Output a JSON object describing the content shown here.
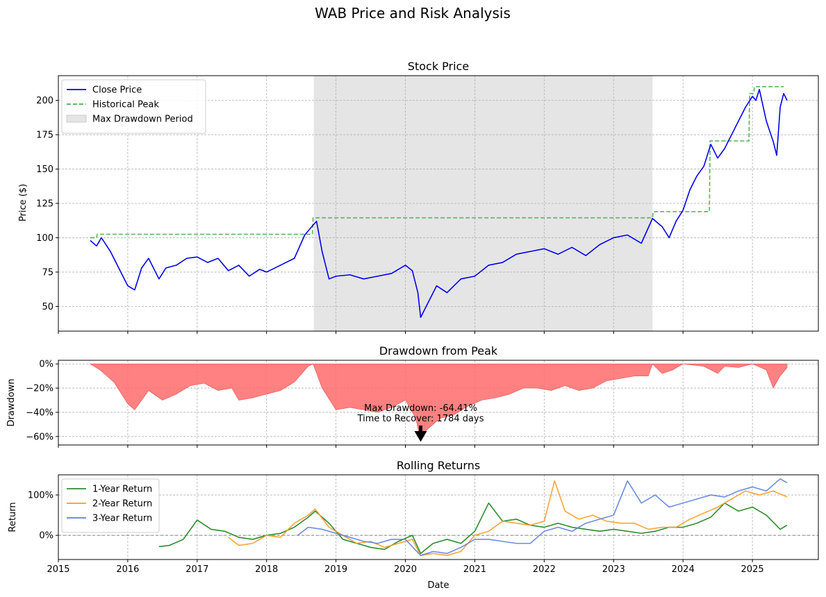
{
  "figure": {
    "title": "WAB Price and Risk Analysis"
  },
  "panels": {
    "price": {
      "title": "Stock Price",
      "ylabel": "Price ($)"
    },
    "drawdown": {
      "title": "Drawdown from Peak",
      "ylabel": "Drawdown"
    },
    "returns": {
      "title": "Rolling Returns",
      "ylabel": "Return",
      "xlabel": "Date"
    }
  },
  "colors": {
    "close": "#0000ee",
    "peak": "#4caf50",
    "shade": "#bdbdbd",
    "drawdown": "#ff6b6b",
    "r1": "#2e8b2e",
    "r2": "#ff9a1f",
    "r3": "#5b7fe0"
  },
  "chart_data": [
    {
      "type": "line",
      "title": "Stock Price",
      "xlabel": "",
      "ylabel": "Price ($)",
      "xlim": [
        2015.0,
        2025.95
      ],
      "ylim": [
        32,
        218
      ],
      "yticks": [
        50,
        75,
        100,
        125,
        150,
        175,
        200
      ],
      "grid": true,
      "legend_position": "top-left",
      "legend": [
        "Close Price",
        "Historical Peak",
        "Max Drawdown Period"
      ],
      "max_drawdown_period": [
        2018.68,
        2023.56
      ],
      "series": [
        {
          "name": "Close Price",
          "x": [
            2015.46,
            2015.55,
            2015.62,
            2015.75,
            2015.87,
            2016.0,
            2016.1,
            2016.2,
            2016.3,
            2016.45,
            2016.55,
            2016.7,
            2016.85,
            2017.0,
            2017.15,
            2017.3,
            2017.45,
            2017.6,
            2017.75,
            2017.9,
            2018.0,
            2018.2,
            2018.4,
            2018.55,
            2018.65,
            2018.72,
            2018.8,
            2018.9,
            2019.0,
            2019.2,
            2019.4,
            2019.6,
            2019.8,
            2020.0,
            2020.1,
            2020.18,
            2020.22,
            2020.3,
            2020.45,
            2020.6,
            2020.8,
            2021.0,
            2021.2,
            2021.4,
            2021.6,
            2021.8,
            2022.0,
            2022.2,
            2022.4,
            2022.6,
            2022.8,
            2023.0,
            2023.2,
            2023.4,
            2023.56,
            2023.7,
            2023.8,
            2023.9,
            2024.0,
            2024.1,
            2024.2,
            2024.3,
            2024.4,
            2024.5,
            2024.6,
            2024.7,
            2024.8,
            2024.9,
            2025.0,
            2025.05,
            2025.1,
            2025.2,
            2025.3,
            2025.35,
            2025.4,
            2025.45,
            2025.5
          ],
          "y": [
            98,
            94,
            100,
            90,
            78,
            65,
            62,
            78,
            85,
            70,
            78,
            80,
            85,
            86,
            82,
            85,
            76,
            80,
            72,
            77,
            75,
            80,
            85,
            102,
            108,
            112,
            90,
            70,
            72,
            73,
            70,
            72,
            74,
            80,
            76,
            60,
            42,
            50,
            65,
            60,
            70,
            72,
            80,
            82,
            88,
            90,
            92,
            88,
            93,
            87,
            95,
            100,
            102,
            96,
            114,
            108,
            100,
            112,
            120,
            135,
            145,
            152,
            168,
            158,
            165,
            175,
            185,
            195,
            203,
            200,
            208,
            185,
            170,
            160,
            195,
            205,
            200
          ]
        },
        {
          "name": "Historical Peak",
          "x": [
            2015.46,
            2015.55,
            2015.56,
            2018.66,
            2018.67,
            2023.56,
            2023.57,
            2023.92,
            2023.93,
            2024.38,
            2024.39,
            2024.95,
            2024.96,
            2025.02,
            2025.03,
            2025.45
          ],
          "y": [
            100,
            100,
            102.5,
            102.5,
            114.5,
            114.5,
            119,
            119,
            119,
            119,
            170.5,
            170.5,
            205,
            205,
            210,
            210
          ]
        }
      ]
    },
    {
      "type": "area",
      "title": "Drawdown from Peak",
      "xlabel": "",
      "ylabel": "Drawdown",
      "xlim": [
        2015.0,
        2025.95
      ],
      "ylim": [
        -0.67,
        0.03
      ],
      "yticks": [
        0,
        -0.2,
        -0.4,
        -0.6
      ],
      "ytick_labels": [
        "0%",
        "−20%",
        "−40%",
        "−60%"
      ],
      "grid": true,
      "annotation": {
        "text": "Max Drawdown: -64.41%\nTime to Recover: 1784 days",
        "point": [
          2020.22,
          -0.6441
        ]
      },
      "series": [
        {
          "name": "Drawdown",
          "x": [
            2015.46,
            2015.6,
            2015.8,
            2016.0,
            2016.1,
            2016.3,
            2016.5,
            2016.7,
            2016.9,
            2017.1,
            2017.3,
            2017.5,
            2017.6,
            2017.8,
            2018.0,
            2018.2,
            2018.4,
            2018.6,
            2018.67,
            2018.8,
            2019.0,
            2019.2,
            2019.4,
            2019.6,
            2019.8,
            2020.0,
            2020.15,
            2020.22,
            2020.3,
            2020.5,
            2020.7,
            2020.9,
            2021.1,
            2021.3,
            2021.5,
            2021.7,
            2021.9,
            2022.1,
            2022.3,
            2022.5,
            2022.7,
            2022.9,
            2023.1,
            2023.3,
            2023.5,
            2023.56,
            2023.7,
            2023.85,
            2024.0,
            2024.3,
            2024.5,
            2024.6,
            2024.8,
            2025.0,
            2025.2,
            2025.3,
            2025.4,
            2025.5
          ],
          "y": [
            0,
            -0.05,
            -0.15,
            -0.33,
            -0.38,
            -0.22,
            -0.3,
            -0.25,
            -0.18,
            -0.16,
            -0.22,
            -0.2,
            -0.3,
            -0.28,
            -0.25,
            -0.22,
            -0.15,
            -0.02,
            0,
            -0.2,
            -0.38,
            -0.36,
            -0.38,
            -0.4,
            -0.36,
            -0.3,
            -0.45,
            -0.64,
            -0.55,
            -0.45,
            -0.42,
            -0.35,
            -0.3,
            -0.28,
            -0.25,
            -0.2,
            -0.2,
            -0.22,
            -0.18,
            -0.22,
            -0.2,
            -0.14,
            -0.12,
            -0.1,
            -0.1,
            0,
            -0.08,
            -0.05,
            0,
            -0.02,
            -0.08,
            -0.02,
            -0.03,
            0,
            -0.05,
            -0.2,
            -0.1,
            -0.03
          ]
        }
      ]
    },
    {
      "type": "line",
      "title": "Rolling Returns",
      "xlabel": "Date",
      "ylabel": "Return",
      "xlim": [
        2015.0,
        2025.95
      ],
      "ylim": [
        -0.6,
        1.5
      ],
      "yticks": [
        0,
        1
      ],
      "ytick_labels": [
        "0%",
        "100%"
      ],
      "xticks": [
        2015,
        2016,
        2017,
        2018,
        2019,
        2020,
        2021,
        2022,
        2023,
        2024,
        2025
      ],
      "xtick_labels": [
        "2015",
        "2016",
        "2017",
        "2018",
        "2019",
        "2020",
        "2021",
        "2022",
        "2023",
        "2024",
        "2025"
      ],
      "grid": true,
      "legend_position": "top-left",
      "legend": [
        "1-Year Return",
        "2-Year Return",
        "3-Year Return"
      ],
      "series": [
        {
          "name": "1-Year Return",
          "x": [
            2016.45,
            2016.6,
            2016.8,
            2017.0,
            2017.2,
            2017.4,
            2017.6,
            2017.8,
            2018.0,
            2018.2,
            2018.4,
            2018.6,
            2018.7,
            2018.9,
            2019.1,
            2019.3,
            2019.5,
            2019.7,
            2019.9,
            2020.1,
            2020.22,
            2020.4,
            2020.6,
            2020.8,
            2021.0,
            2021.2,
            2021.4,
            2021.6,
            2021.8,
            2022.0,
            2022.2,
            2022.4,
            2022.6,
            2022.8,
            2023.0,
            2023.2,
            2023.4,
            2023.6,
            2023.8,
            2024.0,
            2024.2,
            2024.4,
            2024.6,
            2024.8,
            2025.0,
            2025.2,
            2025.4,
            2025.5
          ],
          "y": [
            -0.28,
            -0.25,
            -0.1,
            0.38,
            0.15,
            0.1,
            -0.05,
            -0.1,
            0.0,
            0.05,
            0.2,
            0.45,
            0.6,
            0.3,
            -0.1,
            -0.2,
            -0.3,
            -0.35,
            -0.15,
            0.0,
            -0.45,
            -0.2,
            -0.1,
            -0.2,
            0.1,
            0.8,
            0.35,
            0.4,
            0.25,
            0.2,
            0.3,
            0.2,
            0.15,
            0.1,
            0.15,
            0.1,
            0.05,
            0.1,
            0.2,
            0.2,
            0.3,
            0.45,
            0.8,
            0.6,
            0.7,
            0.5,
            0.15,
            0.25
          ]
        },
        {
          "name": "2-Year Return",
          "x": [
            2017.45,
            2017.6,
            2017.8,
            2018.0,
            2018.2,
            2018.4,
            2018.6,
            2018.7,
            2018.9,
            2019.1,
            2019.3,
            2019.5,
            2019.7,
            2019.9,
            2020.1,
            2020.22,
            2020.4,
            2020.6,
            2020.8,
            2021.0,
            2021.2,
            2021.4,
            2021.6,
            2021.8,
            2022.0,
            2022.15,
            2022.3,
            2022.5,
            2022.7,
            2022.9,
            2023.1,
            2023.3,
            2023.5,
            2023.7,
            2023.9,
            2024.1,
            2024.3,
            2024.5,
            2024.7,
            2024.9,
            2025.1,
            2025.3,
            2025.5
          ],
          "y": [
            -0.05,
            -0.25,
            -0.2,
            0.0,
            -0.05,
            0.3,
            0.5,
            0.65,
            0.2,
            0.0,
            -0.2,
            -0.15,
            -0.3,
            -0.2,
            -0.1,
            -0.5,
            -0.45,
            -0.5,
            -0.4,
            0.0,
            0.1,
            0.35,
            0.3,
            0.25,
            0.35,
            1.35,
            0.6,
            0.4,
            0.5,
            0.35,
            0.3,
            0.3,
            0.15,
            0.2,
            0.2,
            0.4,
            0.55,
            0.7,
            0.9,
            1.1,
            1.0,
            1.1,
            0.95
          ]
        },
        {
          "name": "3-Year Return",
          "x": [
            2018.45,
            2018.6,
            2018.8,
            2019.0,
            2019.2,
            2019.4,
            2019.6,
            2019.8,
            2020.0,
            2020.22,
            2020.4,
            2020.6,
            2020.8,
            2021.0,
            2021.2,
            2021.4,
            2021.6,
            2021.8,
            2022.0,
            2022.2,
            2022.4,
            2022.6,
            2022.8,
            2023.0,
            2023.2,
            2023.4,
            2023.6,
            2023.8,
            2024.0,
            2024.2,
            2024.4,
            2024.6,
            2024.8,
            2025.0,
            2025.2,
            2025.4,
            2025.5
          ],
          "y": [
            0.0,
            0.2,
            0.15,
            0.05,
            -0.05,
            -0.15,
            -0.2,
            -0.1,
            -0.1,
            -0.5,
            -0.4,
            -0.45,
            -0.3,
            -0.1,
            -0.1,
            -0.15,
            -0.2,
            -0.2,
            0.1,
            0.2,
            0.1,
            0.3,
            0.4,
            0.5,
            1.35,
            0.8,
            1.0,
            0.7,
            0.8,
            0.9,
            1.0,
            0.95,
            1.1,
            1.2,
            1.1,
            1.4,
            1.3
          ]
        }
      ]
    }
  ]
}
